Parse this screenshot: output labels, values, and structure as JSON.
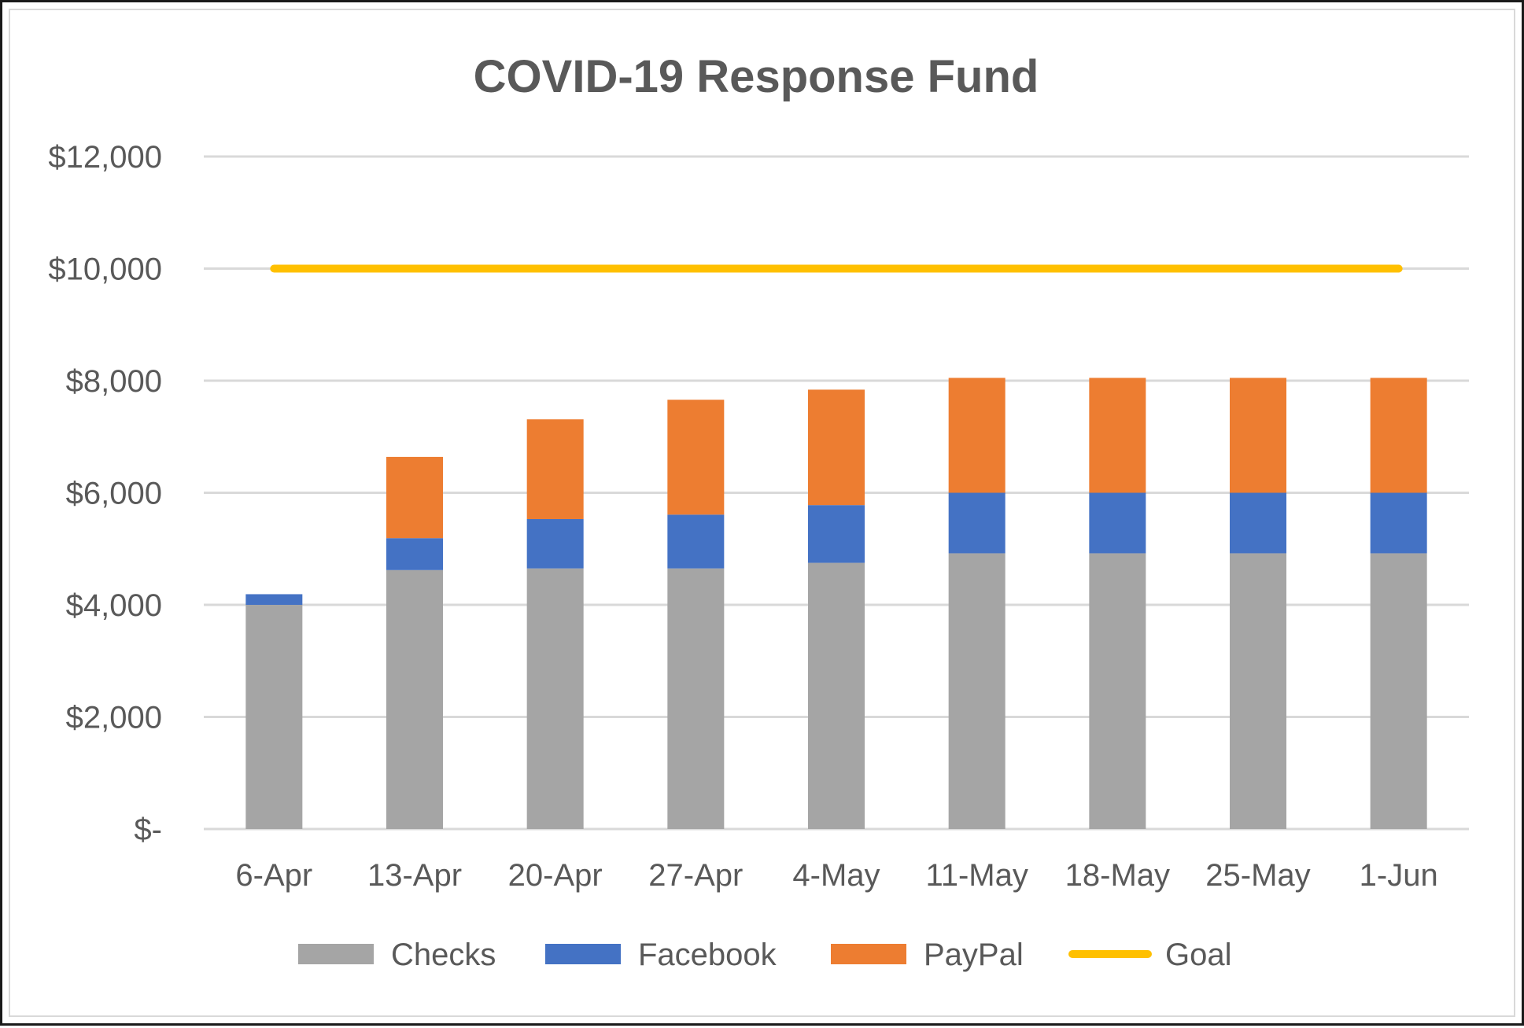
{
  "chart_data": {
    "type": "bar",
    "stacked": true,
    "title": "COVID-19 Response Fund",
    "xlabel": "",
    "ylabel": "",
    "categories": [
      "6-Apr",
      "13-Apr",
      "20-Apr",
      "27-Apr",
      "4-May",
      "11-May",
      "18-May",
      "25-May",
      "1-Jun"
    ],
    "y_ticks": [
      0,
      2000,
      4000,
      6000,
      8000,
      10000,
      12000
    ],
    "y_tick_labels": [
      "$-",
      "$2,000",
      "$4,000",
      "$6,000",
      "$8,000",
      "$10,000",
      "$12,000"
    ],
    "ylim": [
      0,
      12000
    ],
    "grid": true,
    "legend_position": "bottom",
    "series": [
      {
        "name": "Checks",
        "kind": "bar",
        "color": "#a5a5a5",
        "values": [
          4000,
          4620,
          4650,
          4650,
          4750,
          4920,
          4920,
          4920,
          4920
        ]
      },
      {
        "name": "Facebook",
        "kind": "bar",
        "color": "#4472c4",
        "values": [
          190,
          570,
          880,
          960,
          1030,
          1080,
          1080,
          1080,
          1080
        ]
      },
      {
        "name": "PayPal",
        "kind": "bar",
        "color": "#ed7d31",
        "values": [
          0,
          1450,
          1780,
          2050,
          2060,
          2050,
          2050,
          2050,
          2050
        ]
      },
      {
        "name": "Goal",
        "kind": "line",
        "color": "#ffc000",
        "values": [
          10000,
          10000,
          10000,
          10000,
          10000,
          10000,
          10000,
          10000,
          10000
        ]
      }
    ]
  }
}
